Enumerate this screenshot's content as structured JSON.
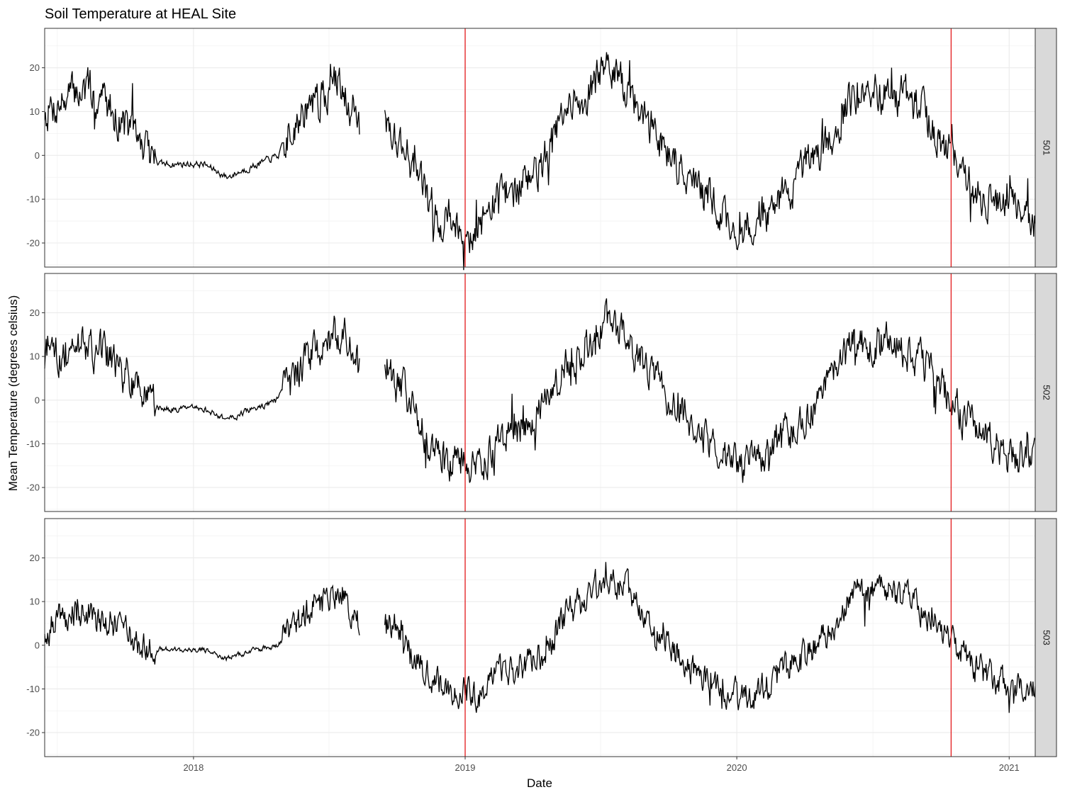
{
  "chart_data": {
    "type": "line",
    "title": "Soil Temperature at HEAL Site",
    "xlabel": "Date",
    "ylabel": "Mean Temperature (degrees celsius)",
    "xlim": [
      "2017-06-15",
      "2021-02-05"
    ],
    "ylim": [
      -25.5,
      29
    ],
    "x_ticks": [
      {
        "date": "2018-01-01",
        "label": "2018"
      },
      {
        "date": "2019-01-01",
        "label": "2019"
      },
      {
        "date": "2020-01-01",
        "label": "2020"
      },
      {
        "date": "2021-01-01",
        "label": "2021"
      }
    ],
    "y_ticks": [
      -20,
      -10,
      0,
      10,
      20
    ],
    "grid": true,
    "facets": "rows",
    "reference_lines": [
      {
        "date": "2019-01-01",
        "color": "#e31a1c"
      },
      {
        "date": "2020-10-15",
        "color": "#e31a1c"
      }
    ],
    "line_color": "#000000",
    "gap": [
      "2018-08-12",
      "2018-09-15"
    ],
    "panels": [
      {
        "strip_label": "501",
        "amp": 1.0,
        "noise": 1.0,
        "x": [
          "2017-06-15",
          "2017-08-01",
          "2017-09-01",
          "2017-10-01",
          "2017-10-20",
          "2017-11-15",
          "2018-01-15",
          "2018-02-15",
          "2018-03-15",
          "2018-04-25",
          "2018-05-15",
          "2018-06-15",
          "2018-07-20",
          "2018-08-12",
          "2018-09-15",
          "2018-10-15",
          "2018-11-15",
          "2018-12-15",
          "2019-01-15",
          "2019-02-15",
          "2019-03-15",
          "2019-04-15",
          "2019-05-15",
          "2019-06-15",
          "2019-07-08",
          "2019-08-01",
          "2019-09-01",
          "2019-10-01",
          "2019-11-01",
          "2019-12-01",
          "2020-01-05",
          "2020-02-01",
          "2020-03-01",
          "2020-04-01",
          "2020-05-01",
          "2020-06-01",
          "2020-07-01",
          "2020-08-01",
          "2020-09-01",
          "2020-10-15",
          "2020-11-15",
          "2020-12-15",
          "2021-02-05"
        ],
        "y": [
          10,
          15,
          13,
          7,
          3,
          -2,
          -2,
          -5,
          -3,
          0,
          7,
          12,
          17,
          7,
          8,
          1,
          -12,
          -15,
          -18,
          -9,
          -7,
          -2,
          9,
          14,
          20,
          16,
          8,
          1,
          -6,
          -11,
          -18,
          -14,
          -10,
          -4,
          3,
          12,
          14,
          14,
          11,
          0,
          -8,
          -11,
          -15
        ]
      },
      {
        "strip_label": "502",
        "amp": 0.95,
        "noise": 0.95,
        "x": [
          "2017-06-15",
          "2017-08-01",
          "2017-09-01",
          "2017-10-01",
          "2017-10-20",
          "2017-11-15",
          "2018-01-15",
          "2018-02-15",
          "2018-03-15",
          "2018-04-25",
          "2018-05-15",
          "2018-06-15",
          "2018-07-20",
          "2018-08-12",
          "2018-09-15",
          "2018-10-15",
          "2018-11-15",
          "2018-12-15",
          "2019-01-15",
          "2019-02-15",
          "2019-03-15",
          "2019-04-15",
          "2019-05-15",
          "2019-06-15",
          "2019-07-08",
          "2019-08-01",
          "2019-09-01",
          "2019-10-01",
          "2019-11-01",
          "2019-12-01",
          "2020-01-05",
          "2020-02-01",
          "2020-03-01",
          "2020-04-01",
          "2020-05-01",
          "2020-06-01",
          "2020-07-01",
          "2020-08-01",
          "2020-09-01",
          "2020-10-15",
          "2020-11-15",
          "2020-12-15",
          "2021-02-05"
        ],
        "y": [
          9,
          13,
          11,
          6,
          2,
          -2,
          -2,
          -4.5,
          -2.5,
          0,
          6,
          11,
          16,
          7,
          7,
          1,
          -11,
          -14,
          -17,
          -9,
          -6,
          -2,
          8,
          13,
          19,
          15,
          8,
          1,
          -6,
          -10,
          -16,
          -13,
          -9,
          -4,
          3,
          12,
          13,
          13,
          10,
          0,
          -7,
          -10,
          -14
        ]
      },
      {
        "strip_label": "503",
        "amp": 0.75,
        "noise": 0.8,
        "x": [
          "2017-06-15",
          "2017-08-01",
          "2017-09-01",
          "2017-10-01",
          "2017-10-20",
          "2017-11-15",
          "2018-01-15",
          "2018-02-15",
          "2018-03-15",
          "2018-04-25",
          "2018-05-15",
          "2018-06-15",
          "2018-07-20",
          "2018-08-12",
          "2018-09-15",
          "2018-10-15",
          "2018-11-15",
          "2018-12-15",
          "2019-01-15",
          "2019-02-15",
          "2019-03-15",
          "2019-04-15",
          "2019-05-15",
          "2019-06-15",
          "2019-07-08",
          "2019-08-01",
          "2019-09-01",
          "2019-10-01",
          "2019-11-01",
          "2019-12-01",
          "2020-01-05",
          "2020-02-01",
          "2020-03-01",
          "2020-04-01",
          "2020-05-01",
          "2020-06-01",
          "2020-07-01",
          "2020-08-01",
          "2020-09-01",
          "2020-10-15",
          "2020-11-15",
          "2020-12-15",
          "2021-02-05"
        ],
        "y": [
          4,
          8,
          6,
          3,
          0,
          -1,
          -1,
          -3,
          -1.5,
          0,
          4,
          9,
          12,
          5,
          6,
          1,
          -8,
          -10,
          -12,
          -6,
          -5,
          -2,
          7,
          11,
          16,
          13,
          7,
          0,
          -5,
          -8,
          -12,
          -10,
          -7,
          -3,
          3,
          11,
          12,
          12,
          9,
          0,
          -5,
          -8,
          -11
        ]
      }
    ]
  }
}
